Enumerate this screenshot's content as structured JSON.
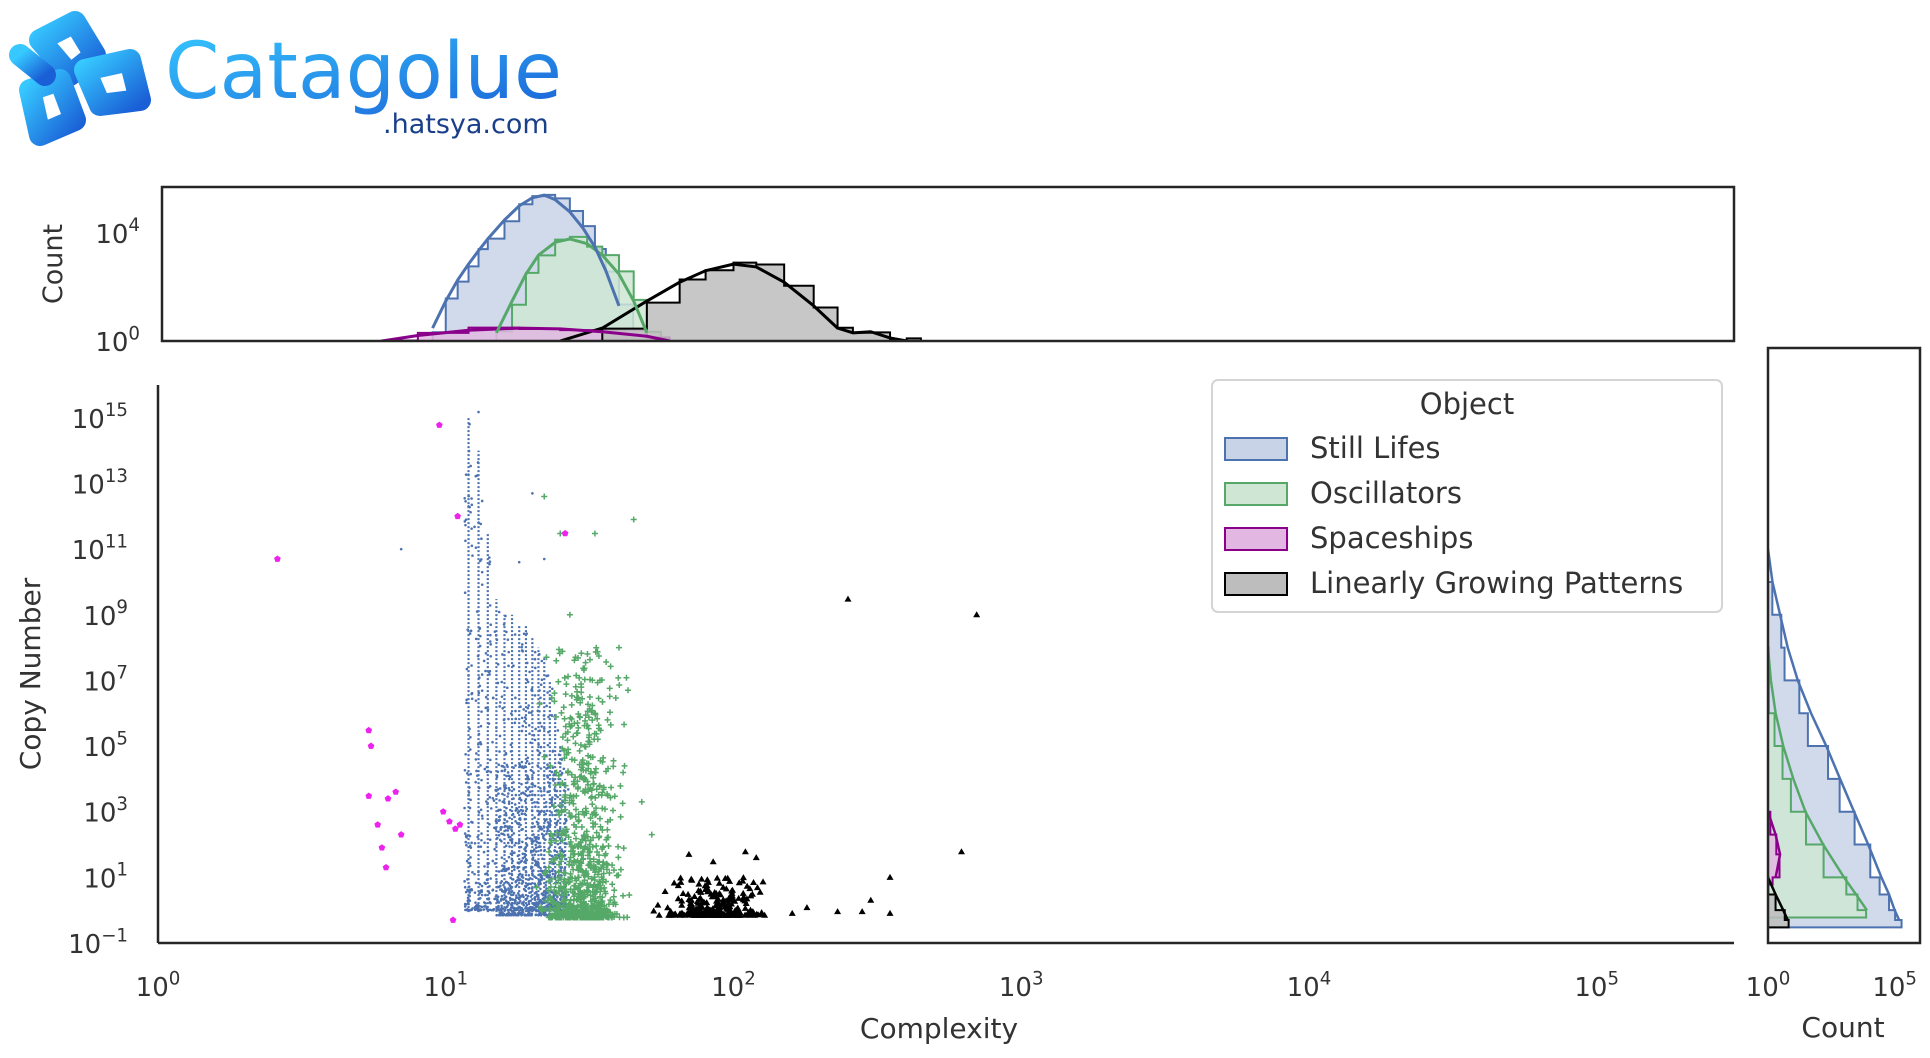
{
  "logo": {
    "name": "Catagolue",
    "domain": ".hatsya.com",
    "icon": "glider-knot-logo-icon"
  },
  "colors": {
    "still_lifes": "#4c72b0",
    "oscillators": "#55a868",
    "spaceships": "#8b008b",
    "spaceships_points": "#ee22ee",
    "linear": "#000000",
    "fill_still": "#c9d3e8",
    "fill_osc": "#cfe6d4",
    "fill_ship": "#e2b8e2",
    "fill_linear": "#bdbdbd",
    "frame": "#262626"
  },
  "chart_data": {
    "type": "scatter",
    "xlabel": "Complexity",
    "ylabel": "Copy Number",
    "x_scale": "log",
    "y_scale": "log",
    "xlim": [
      1,
      300000
    ],
    "ylim": [
      0.1,
      1e+16
    ],
    "x_ticks": [
      {
        "value": 1,
        "base": "10",
        "exp": "0"
      },
      {
        "value": 10,
        "base": "10",
        "exp": "1"
      },
      {
        "value": 100,
        "base": "10",
        "exp": "2"
      },
      {
        "value": 1000,
        "base": "10",
        "exp": "3"
      },
      {
        "value": 10000,
        "base": "10",
        "exp": "4"
      },
      {
        "value": 100000,
        "base": "10",
        "exp": "5"
      }
    ],
    "y_ticks": [
      {
        "value": 0.1,
        "base": "10",
        "exp": "−1"
      },
      {
        "value": 10,
        "base": "10",
        "exp": "1"
      },
      {
        "value": 1000,
        "base": "10",
        "exp": "3"
      },
      {
        "value": 100000,
        "base": "10",
        "exp": "5"
      },
      {
        "value": 10000000.0,
        "base": "10",
        "exp": "7"
      },
      {
        "value": 1000000000.0,
        "base": "10",
        "exp": "9"
      },
      {
        "value": 100000000000.0,
        "base": "10",
        "exp": "11"
      },
      {
        "value": 10000000000000.0,
        "base": "10",
        "exp": "13"
      },
      {
        "value": 1000000000000000.0,
        "base": "10",
        "exp": "15"
      }
    ],
    "grid": false,
    "legend": {
      "title": "Object",
      "placement": "top-right",
      "entries": [
        "Still Lifes",
        "Oscillators",
        "Spaceships",
        "Linearly Growing Patterns"
      ]
    },
    "top_marginal": {
      "ylabel": "Count",
      "y_scale": "log",
      "ylim": [
        1,
        500000
      ],
      "y_ticks": [
        {
          "value": 1,
          "base": "10",
          "exp": "0"
        },
        {
          "value": 10000,
          "base": "10",
          "exp": "4"
        }
      ],
      "kde": {
        "Still Lifes": [
          [
            9,
            3
          ],
          [
            10,
            30
          ],
          [
            11,
            180
          ],
          [
            12,
            700
          ],
          [
            13,
            2200
          ],
          [
            14,
            6000
          ],
          [
            16,
            30000
          ],
          [
            18,
            100000
          ],
          [
            20,
            200000
          ],
          [
            22,
            250000
          ],
          [
            24,
            170000
          ],
          [
            27,
            60000
          ],
          [
            30,
            15000
          ],
          [
            33,
            3000
          ],
          [
            36,
            400
          ],
          [
            40,
            20
          ]
        ],
        "Oscillators": [
          [
            15,
            2
          ],
          [
            17,
            30
          ],
          [
            19,
            300
          ],
          [
            21,
            1500
          ],
          [
            24,
            4500
          ],
          [
            27,
            6000
          ],
          [
            31,
            4000
          ],
          [
            35,
            1500
          ],
          [
            40,
            300
          ],
          [
            45,
            30
          ],
          [
            50,
            2
          ]
        ],
        "Spaceships": [
          [
            6,
            1
          ],
          [
            8,
            1.6
          ],
          [
            12,
            2.5
          ],
          [
            18,
            3
          ],
          [
            25,
            2.8
          ],
          [
            35,
            2.2
          ],
          [
            50,
            1.5
          ],
          [
            60,
            1
          ]
        ],
        "Linearly Growing Patterns": [
          [
            25,
            1
          ],
          [
            35,
            3
          ],
          [
            50,
            30
          ],
          [
            65,
            150
          ],
          [
            80,
            400
          ],
          [
            100,
            700
          ],
          [
            120,
            550
          ],
          [
            150,
            150
          ],
          [
            190,
            20
          ],
          [
            230,
            3
          ],
          [
            260,
            2
          ],
          [
            300,
            2.2
          ],
          [
            350,
            1.3
          ],
          [
            400,
            1
          ]
        ]
      }
    },
    "right_marginal": {
      "xlabel": "Count",
      "x_scale": "log",
      "xlim": [
        1,
        1000000
      ],
      "x_ticks": [
        {
          "value": 1,
          "base": "10",
          "exp": "0"
        },
        {
          "value": 100000,
          "base": "10",
          "exp": "5"
        }
      ],
      "profiles": {
        "Still Lifes": [
          [
            100000000000.0,
            1
          ],
          [
            10000000000.0,
            1.5
          ],
          [
            1000000000.0,
            3
          ],
          [
            100000000.0,
            6
          ],
          [
            10000000.0,
            15
          ],
          [
            1000000.0,
            50
          ],
          [
            100000.0,
            200
          ],
          [
            10000,
            700
          ],
          [
            1000,
            2500
          ],
          [
            100,
            9000
          ],
          [
            10,
            30000
          ],
          [
            3,
            60000
          ],
          [
            1,
            100000
          ],
          [
            0.5,
            150000
          ]
        ],
        "Oscillators": [
          [
            100000000.0,
            1
          ],
          [
            10000000.0,
            1.3
          ],
          [
            1000000.0,
            2
          ],
          [
            100000.0,
            4
          ],
          [
            10000,
            10
          ],
          [
            1000,
            30
          ],
          [
            100,
            150
          ],
          [
            10,
            1000
          ],
          [
            3,
            3000
          ],
          [
            1,
            8000
          ]
        ],
        "Spaceships": [
          [
            1000,
            1
          ],
          [
            200,
            2
          ],
          [
            50,
            3
          ],
          [
            10,
            2
          ]
        ],
        "Linearly Growing Patterns": [
          [
            10,
            1
          ],
          [
            3,
            2
          ],
          [
            1,
            4
          ],
          [
            0.5,
            6
          ]
        ]
      }
    },
    "series": [
      {
        "name": "Still Lifes",
        "marker": "dot",
        "scatter_columns": [
          {
            "x": 12,
            "y_range": [
              1,
              1000000000000000.0
            ]
          },
          {
            "x": 13,
            "y_range": [
              1,
              100000000000000.0
            ]
          },
          {
            "x": 14,
            "y_range": [
              1,
              300000000000.0
            ]
          },
          {
            "x": 15,
            "y_range": [
              1,
              3000000000.0
            ]
          },
          {
            "x": 16,
            "y_range": [
              1,
              1000000000.0
            ]
          },
          {
            "x": 17,
            "y_range": [
              1,
              1000000000.0
            ]
          },
          {
            "x": 18,
            "y_range": [
              1,
              500000000.0
            ]
          },
          {
            "x": 19,
            "y_range": [
              1,
              500000000.0
            ]
          },
          {
            "x": 20,
            "y_range": [
              1,
              200000000.0
            ]
          },
          {
            "x": 21,
            "y_range": [
              1,
              100000000.0
            ]
          },
          {
            "x": 22,
            "y_range": [
              1,
              50000000.0
            ]
          },
          {
            "x": 23,
            "y_range": [
              1,
              10000000.0
            ]
          },
          {
            "x": 24,
            "y_range": [
              1,
              1000000.0
            ]
          },
          {
            "x": 25,
            "y_range": [
              1,
              100000.0
            ]
          },
          {
            "x": 26,
            "y_range": [
              1,
              10000.0
            ]
          }
        ],
        "points": [
          [
            13,
            1500000000000000.0
          ],
          [
            20,
            5000000000000.0
          ],
          [
            7,
            100000000000.0
          ],
          [
            12,
            2000000000000.0
          ],
          [
            22,
            50000000000.0
          ],
          [
            18,
            40000000000.0
          ]
        ]
      },
      {
        "name": "Oscillators",
        "marker": "plus",
        "cloud": {
          "x_range": [
            20,
            45
          ],
          "y_range": [
            0.6,
            100000000.0
          ],
          "count": 900
        },
        "points": [
          [
            22,
            4000000000000.0
          ],
          [
            25,
            300000000000.0
          ],
          [
            33,
            300000000000.0
          ],
          [
            45,
            800000000000.0
          ],
          [
            27,
            1000000000.0
          ],
          [
            40,
            100000000.0
          ],
          [
            43,
            5000000.0
          ],
          [
            48,
            2000
          ],
          [
            52,
            200
          ]
        ]
      },
      {
        "name": "Spaceships",
        "marker": "pentagon",
        "points": [
          [
            2.6,
            50000000000.0
          ],
          [
            9.5,
            600000000000000.0
          ],
          [
            11,
            1000000000000.0
          ],
          [
            26,
            300000000000.0
          ],
          [
            5.4,
            300000.0
          ],
          [
            5.5,
            100000.0
          ],
          [
            5.4,
            3000
          ],
          [
            6.3,
            2500
          ],
          [
            6.7,
            4000
          ],
          [
            9.8,
            1000
          ],
          [
            10.3,
            500
          ],
          [
            10.8,
            300
          ],
          [
            11.2,
            400
          ],
          [
            5.8,
            400
          ],
          [
            6,
            80
          ],
          [
            7,
            200
          ],
          [
            10.6,
            0.5
          ],
          [
            6.2,
            20
          ]
        ]
      },
      {
        "name": "Linearly Growing Patterns",
        "marker": "triangle",
        "cloud": {
          "x_range": [
            50,
            150
          ],
          "y_range": [
            0.7,
            10
          ],
          "count": 300
        },
        "points": [
          [
            250,
            3000000000.0
          ],
          [
            700,
            1000000000.0
          ],
          [
            620,
            60
          ],
          [
            300,
            2
          ],
          [
            350,
            0.8
          ],
          [
            230,
            0.9
          ],
          [
            180,
            1.2
          ],
          [
            160,
            0.8
          ],
          [
            70,
            50
          ],
          [
            85,
            30
          ],
          [
            110,
            60
          ],
          [
            120,
            40
          ],
          [
            350,
            10
          ],
          [
            280,
            0.9
          ]
        ]
      }
    ]
  }
}
